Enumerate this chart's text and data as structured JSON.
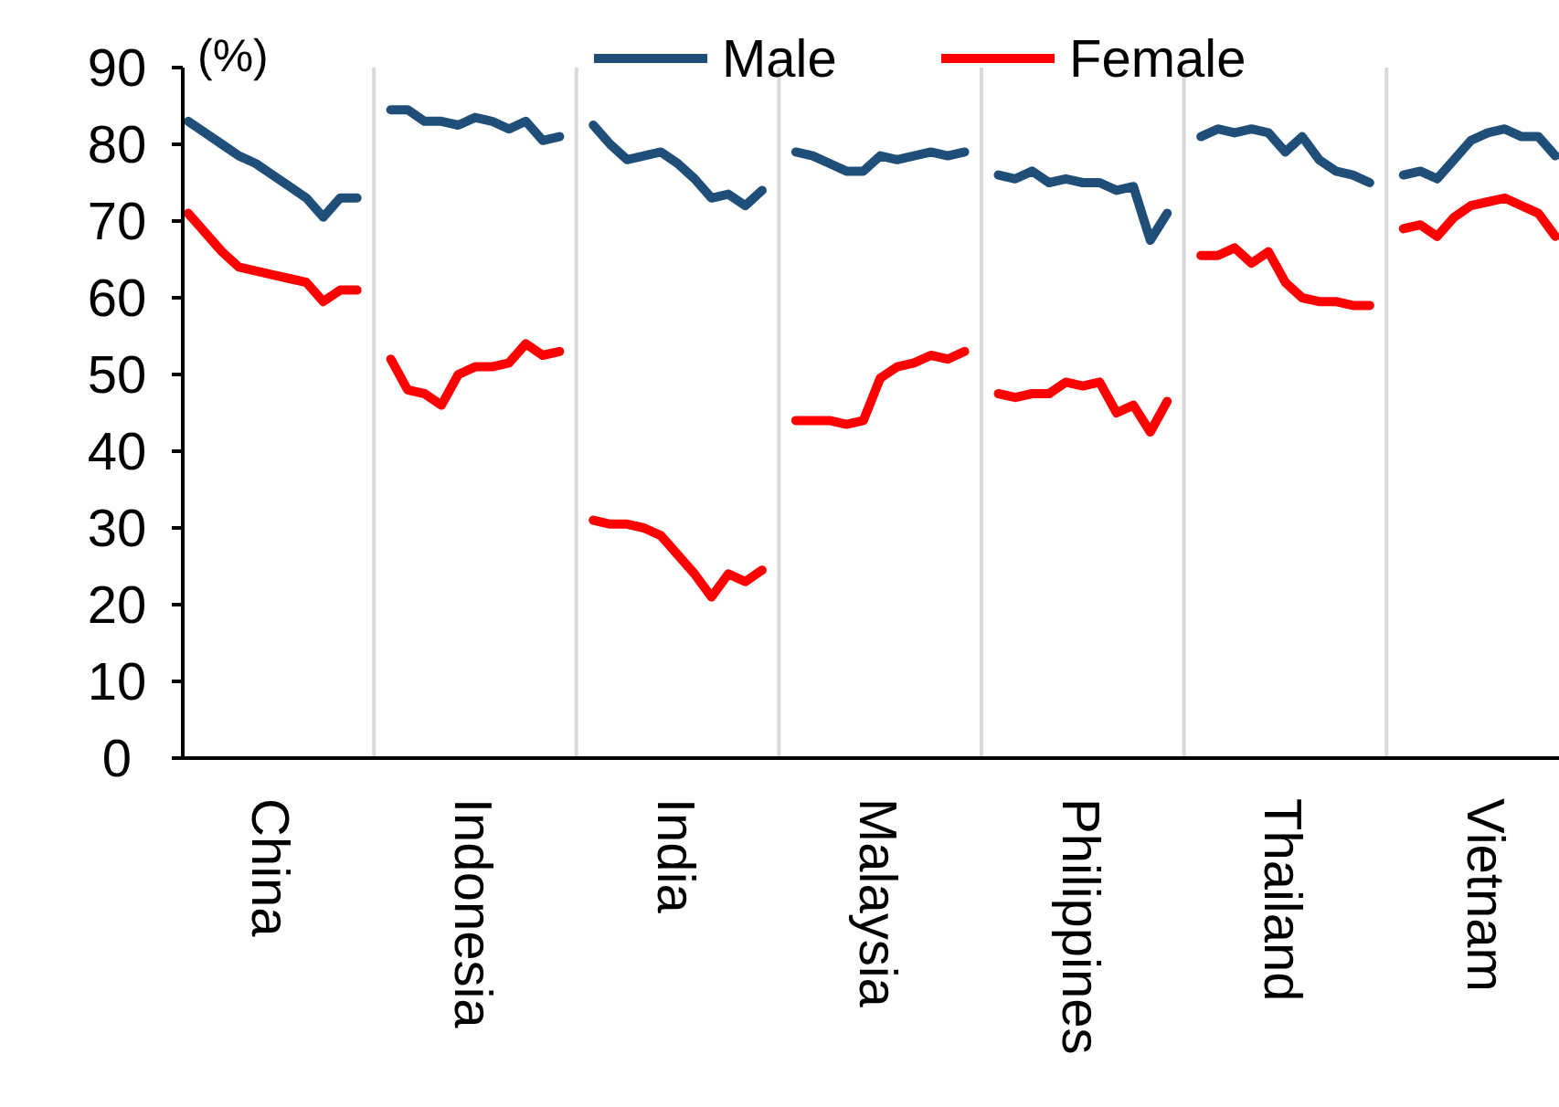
{
  "chart_data": {
    "type": "line",
    "ylabel": "(%)",
    "legend": "top",
    "line_style": "solid",
    "marker": "none",
    "categories": [
      null,
      null,
      null,
      null,
      null,
      "China",
      null,
      null,
      null,
      null,
      null,
      null,
      null,
      null,
      null,
      null,
      null,
      "Indonesia",
      null,
      null,
      null,
      null,
      null,
      null,
      null,
      null,
      null,
      null,
      null,
      "India",
      null,
      null,
      null,
      null,
      null,
      null,
      null,
      null,
      null,
      null,
      null,
      "Malaysia",
      null,
      null,
      null,
      null,
      null,
      null,
      null,
      null,
      null,
      null,
      null,
      "Philippines",
      null,
      null,
      null,
      null,
      null,
      null,
      null,
      null,
      null,
      null,
      null,
      "Thailand",
      null,
      null,
      null,
      null,
      null,
      null,
      null,
      null,
      null,
      null,
      null,
      "Vietnam",
      null,
      null,
      null,
      null
    ],
    "series": [
      {
        "name": "Male",
        "color": "#1f4e79",
        "values": [
          83,
          81.5,
          80,
          78.5,
          77.5,
          76,
          74.5,
          73,
          70.5,
          73,
          73,
          null,
          84.5,
          84.5,
          83,
          83,
          82.5,
          83.5,
          83,
          82,
          83,
          80.5,
          81,
          null,
          82.5,
          80,
          78,
          78.5,
          79,
          77.5,
          75.5,
          73,
          73.5,
          72,
          74,
          null,
          79,
          78.5,
          77.5,
          76.5,
          76.5,
          78.5,
          78,
          78.5,
          79,
          78.5,
          79,
          null,
          76,
          75.5,
          76.5,
          75,
          75.5,
          75,
          75,
          74,
          74.5,
          67.5,
          71,
          null,
          81,
          82,
          81.5,
          82,
          81.5,
          79,
          81,
          78,
          76.5,
          76,
          75,
          null,
          76,
          76.5,
          75.5,
          78,
          80.5,
          81.5,
          82,
          81,
          81,
          78.5
        ]
      },
      {
        "name": "Female",
        "color": "#ff0000",
        "values": [
          71,
          68.5,
          66,
          64,
          63.5,
          63,
          62.5,
          62,
          59.5,
          61,
          61,
          null,
          52,
          48,
          47.5,
          46,
          50,
          51,
          51,
          51.5,
          54,
          52.5,
          53,
          null,
          31,
          30.5,
          30.5,
          30,
          29,
          26.5,
          24,
          21,
          24,
          23,
          24.5,
          null,
          44,
          44,
          44,
          43.5,
          44,
          49.5,
          51,
          51.5,
          52.5,
          52,
          53,
          null,
          47.5,
          47,
          47.5,
          47.5,
          49,
          48.5,
          49,
          45,
          46,
          42.5,
          46.5,
          null,
          65.5,
          65.5,
          66.5,
          64.5,
          66,
          62,
          60,
          59.5,
          59.5,
          59,
          59,
          null,
          69,
          69.5,
          68,
          70.5,
          72,
          72.5,
          73,
          72,
          71,
          68
        ]
      }
    ],
    "ylim": [
      0,
      90
    ],
    "yticks": [
      0,
      10,
      20,
      30,
      40,
      50,
      60,
      70,
      80,
      90
    ]
  }
}
